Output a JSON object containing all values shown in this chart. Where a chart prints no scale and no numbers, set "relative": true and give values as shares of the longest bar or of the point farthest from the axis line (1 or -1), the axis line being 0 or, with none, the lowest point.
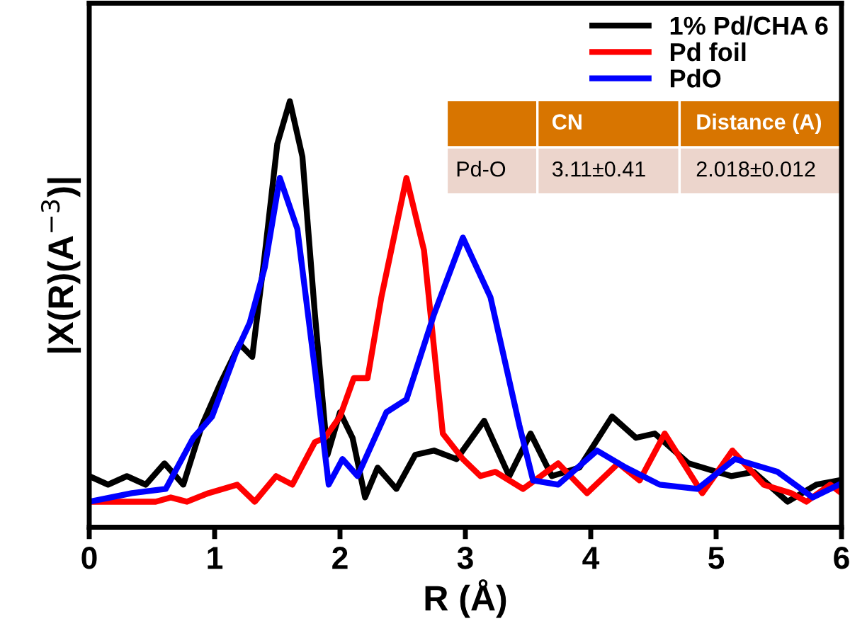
{
  "chart_data": {
    "type": "line",
    "relative": true,
    "xlabel": "R (Å)",
    "ylabel": "|X(R)(A$^{−3}$)|",
    "xlim": [
      0,
      6
    ],
    "xticks": [
      0,
      1,
      2,
      3,
      4,
      5,
      6
    ],
    "legend": "top right",
    "grid": false,
    "line_style": "solid",
    "marker": "none",
    "tick_labels": "x",
    "annotations": [
      "CN",
      "Distance (A)",
      "Pd-O",
      "3.11±0.41",
      "2.018±0.012"
    ],
    "series": [
      {
        "name": "1% Pd/CHA 6",
        "color": "#000000",
        "x": [
          0,
          0.15,
          0.3,
          0.45,
          0.6,
          0.75,
          0.9,
          1.05,
          1.2,
          1.3,
          1.4,
          1.5,
          1.6,
          1.7,
          1.8,
          1.9,
          2.0,
          2.1,
          2.2,
          2.3,
          2.45,
          2.6,
          2.75,
          2.93,
          3.15,
          3.35,
          3.52,
          3.69,
          3.91,
          4.17,
          4.36,
          4.51,
          4.78,
          5.12,
          5.3,
          5.57,
          5.8,
          5.98
        ],
        "values": [
          0.12,
          0.1,
          0.12,
          0.1,
          0.15,
          0.1,
          0.24,
          0.34,
          0.43,
          0.4,
          0.64,
          0.9,
          1.0,
          0.87,
          0.5,
          0.17,
          0.27,
          0.21,
          0.07,
          0.14,
          0.09,
          0.17,
          0.18,
          0.16,
          0.25,
          0.12,
          0.22,
          0.12,
          0.14,
          0.26,
          0.21,
          0.22,
          0.15,
          0.12,
          0.13,
          0.06,
          0.1,
          0.11
        ]
      },
      {
        "name": "Pd foil",
        "color": "#ff0000",
        "x": [
          0,
          0.53,
          0.65,
          0.78,
          0.95,
          1.18,
          1.32,
          1.49,
          1.62,
          1.8,
          1.88,
          2.0,
          2.11,
          2.22,
          2.33,
          2.53,
          2.67,
          2.82,
          2.98,
          3.12,
          3.24,
          3.46,
          3.74,
          3.97,
          4.22,
          4.39,
          4.59,
          4.89,
          5.13,
          5.38,
          5.6,
          5.72,
          5.91,
          6.0
        ],
        "values": [
          0.06,
          0.06,
          0.07,
          0.06,
          0.08,
          0.1,
          0.06,
          0.12,
          0.1,
          0.2,
          0.21,
          0.26,
          0.35,
          0.35,
          0.54,
          0.82,
          0.65,
          0.22,
          0.16,
          0.12,
          0.13,
          0.09,
          0.15,
          0.08,
          0.15,
          0.11,
          0.22,
          0.08,
          0.18,
          0.1,
          0.08,
          0.06,
          0.1,
          0.08
        ]
      },
      {
        "name": "PdO",
        "color": "#0000ff",
        "x": [
          0,
          0.34,
          0.61,
          0.83,
          0.98,
          1.17,
          1.28,
          1.4,
          1.52,
          1.66,
          1.8,
          1.91,
          2.02,
          2.14,
          2.37,
          2.53,
          2.75,
          2.98,
          3.2,
          3.43,
          3.54,
          3.74,
          4.05,
          4.28,
          4.55,
          4.85,
          5.15,
          5.49,
          5.77,
          5.98
        ],
        "values": [
          0.06,
          0.08,
          0.09,
          0.21,
          0.26,
          0.41,
          0.48,
          0.61,
          0.82,
          0.7,
          0.37,
          0.1,
          0.16,
          0.12,
          0.27,
          0.3,
          0.5,
          0.68,
          0.54,
          0.24,
          0.11,
          0.1,
          0.18,
          0.14,
          0.1,
          0.09,
          0.16,
          0.13,
          0.07,
          0.1
        ]
      }
    ]
  }
}
